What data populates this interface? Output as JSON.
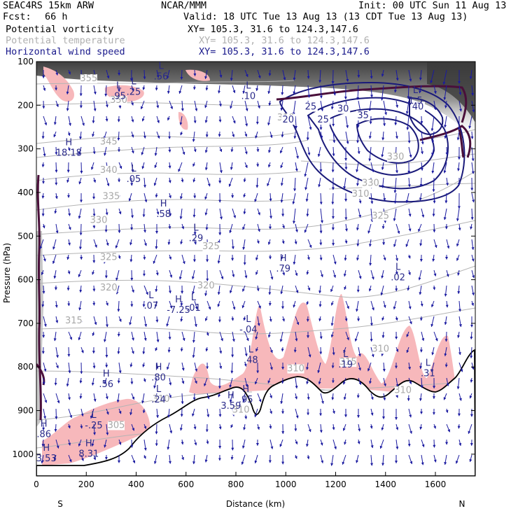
{
  "header": {
    "model": "SEAC4RS 15km ARW",
    "center": "NCAR/MMM",
    "init": "Init: 00 UTC Sun 11 Aug 13",
    "fcst_label": "Fcst:",
    "fcst_value": "66 h",
    "valid": "Valid: 18 UTC Tue 13 Aug 13 (13 CDT Tue 13 Aug 13)",
    "fields": [
      {
        "name": "Potential vorticity",
        "xy": "XY= 105.3, 31.6 to 124.3,147.6",
        "color": "#000000"
      },
      {
        "name": "Potential temperature",
        "xy": "XY= 105.3, 31.6 to 124.3,147.6",
        "color": "#b0b0b0"
      },
      {
        "name": "Horizontal wind speed",
        "xy": "XY= 105.3, 31.6 to 124.3,147.6",
        "color": "#1a1a8c"
      }
    ]
  },
  "chart_data": {
    "type": "cross-section",
    "xlabel": "Distance (km)",
    "ylabel": "Pressure (hPa)",
    "xlim": [
      0,
      1760
    ],
    "ylim": [
      1050,
      100
    ],
    "x_ticks": [
      "0",
      "200",
      "400",
      "600",
      "800",
      "1000",
      "1200",
      "1400",
      "1600"
    ],
    "y_ticks": [
      "100",
      "200",
      "300",
      "400",
      "500",
      "600",
      "700",
      "800",
      "900",
      "1000"
    ],
    "endpoint_labels": {
      "left": "S",
      "right": "N"
    },
    "theta_labels": [
      {
        "text": "355",
        "x": 210,
        "p": 145
      },
      {
        "text": "350",
        "x": 330,
        "p": 195
      },
      {
        "text": "345",
        "x": 290,
        "p": 290
      },
      {
        "text": "340",
        "x": 290,
        "p": 355
      },
      {
        "text": "335",
        "x": 300,
        "p": 415
      },
      {
        "text": "330",
        "x": 250,
        "p": 470
      },
      {
        "text": "325",
        "x": 290,
        "p": 555
      },
      {
        "text": "320",
        "x": 290,
        "p": 625
      },
      {
        "text": "315",
        "x": 150,
        "p": 700
      },
      {
        "text": "325",
        "x": 700,
        "p": 530
      },
      {
        "text": "320",
        "x": 680,
        "p": 620
      },
      {
        "text": "330",
        "x": 1440,
        "p": 325
      },
      {
        "text": "330",
        "x": 1340,
        "p": 385
      },
      {
        "text": "325",
        "x": 1380,
        "p": 460
      },
      {
        "text": "310",
        "x": 1000,
        "p": 235
      },
      {
        "text": "310",
        "x": 1040,
        "p": 810
      },
      {
        "text": "310",
        "x": 1380,
        "p": 765
      },
      {
        "text": "315",
        "x": 1250,
        "p": 795
      },
      {
        "text": "305",
        "x": 320,
        "p": 940
      },
      {
        "text": "310",
        "x": 500,
        "p": 880
      },
      {
        "text": "310",
        "x": 820,
        "p": 905
      },
      {
        "text": "310",
        "x": 1470,
        "p": 860
      },
      {
        "text": "310",
        "x": 1300,
        "p": 410
      }
    ],
    "wind_speed_contours": [
      {
        "value": 20,
        "label_x": 1010,
        "label_p": 240
      },
      {
        "value": 25,
        "label_x": 1100,
        "label_p": 210
      },
      {
        "value": 25,
        "label_x": 1150,
        "label_p": 240
      },
      {
        "value": 30,
        "label_x": 1230,
        "label_p": 215
      },
      {
        "value": 35,
        "label_x": 1310,
        "label_p": 230
      },
      {
        "value": 40,
        "label_x": 1530,
        "label_p": 210
      }
    ],
    "hl_markers": [
      {
        "letter": "L",
        "value": ".56",
        "x": 500,
        "p": 130
      },
      {
        "letter": "L",
        "value": ".25",
        "x": 390,
        "p": 165
      },
      {
        "letter": "L",
        "value": ".95",
        "x": 330,
        "p": 175
      },
      {
        "letter": "L",
        "value": ".10",
        "x": 850,
        "p": 175
      },
      {
        "letter": "L",
        "value": "1.5",
        "x": 1520,
        "p": 185
      },
      {
        "letter": "H",
        "value": "18.18",
        "x": 130,
        "p": 305
      },
      {
        "letter": "L",
        "value": ".05",
        "x": 390,
        "p": 365
      },
      {
        "letter": "H",
        "value": ".58",
        "x": 510,
        "p": 445
      },
      {
        "letter": "L",
        "value": ".29",
        "x": 640,
        "p": 500
      },
      {
        "letter": "H",
        "value": ".79",
        "x": 990,
        "p": 570
      },
      {
        "letter": "L",
        "value": ".02",
        "x": 1450,
        "p": 590
      },
      {
        "letter": "L",
        "value": ".07",
        "x": 460,
        "p": 655
      },
      {
        "letter": "H",
        "value": "-7.25",
        "x": 570,
        "p": 665
      },
      {
        "letter": "L",
        "value": ".01",
        "x": 630,
        "p": 660
      },
      {
        "letter": "L",
        "value": "-.04",
        "x": 850,
        "p": 710
      },
      {
        "letter": "L",
        "value": ".48",
        "x": 860,
        "p": 780
      },
      {
        "letter": "L",
        "value": ".19",
        "x": 1240,
        "p": 790
      },
      {
        "letter": "L",
        "value": ".31",
        "x": 1570,
        "p": 810
      },
      {
        "letter": "H",
        "value": ".80",
        "x": 490,
        "p": 820
      },
      {
        "letter": "H",
        "value": ".56",
        "x": 280,
        "p": 835
      },
      {
        "letter": "L",
        "value": ".24",
        "x": 490,
        "p": 870
      },
      {
        "letter": "H",
        "value": "3.59",
        "x": 780,
        "p": 885
      },
      {
        "letter": "H",
        "value": ".95",
        "x": 840,
        "p": 870
      },
      {
        "letter": "L",
        "value": "-.25",
        "x": 230,
        "p": 930
      },
      {
        "letter": "H",
        "value": ".86",
        "x": 30,
        "p": 950
      },
      {
        "letter": "H",
        "value": "3.53",
        "x": 40,
        "p": 1005
      },
      {
        "letter": "H",
        "value": "8.31",
        "x": 210,
        "p": 995
      }
    ]
  }
}
